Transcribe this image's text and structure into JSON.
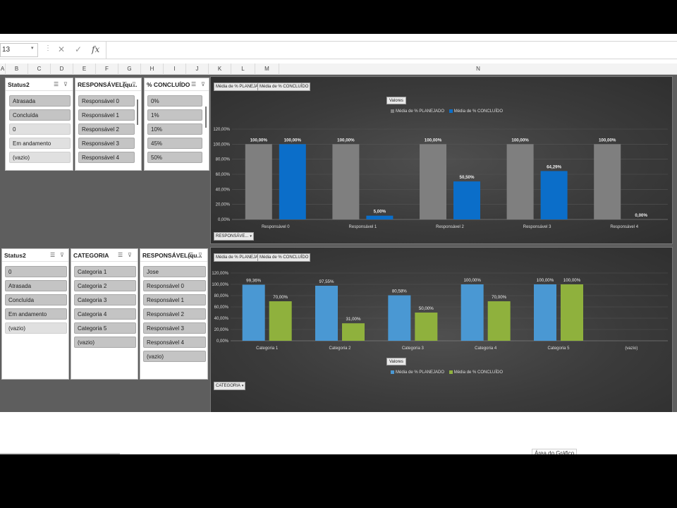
{
  "formula_bar": {
    "name_box": "13",
    "caret": "▾",
    "separator": "⋮",
    "cancel": "✕",
    "enter": "✓",
    "fx": "fx"
  },
  "columns": [
    "A",
    "B",
    "C",
    "D",
    "E",
    "F",
    "G",
    "H",
    "I",
    "J",
    "K",
    "L",
    "M",
    "N"
  ],
  "slicers_top": [
    {
      "title": "Status2",
      "items": [
        "Atrasada",
        "Concluída",
        "0",
        "Em andamento",
        "(vazio)"
      ]
    },
    {
      "title": "RESPONSÁVEL(qu...",
      "items": [
        "Responsável 0",
        "Responsável 1",
        "Responsável 2",
        "Responsável 3",
        "Responsável 4"
      ]
    },
    {
      "title": "% CONCLUÍDO",
      "items": [
        "0%",
        "1%",
        "10%",
        "45%",
        "50%"
      ]
    }
  ],
  "slicers_bottom": [
    {
      "title": "Status2",
      "items": [
        "0",
        "Atrasada",
        "Concluída",
        "Em andamento",
        "(vazio)"
      ]
    },
    {
      "title": "CATEGORIA",
      "items": [
        "Categoria 1",
        "Categoria 2",
        "Categoria 3",
        "Categoria 4",
        "Categoria 5",
        "(vazio)"
      ]
    },
    {
      "title": "RESPONSÁVEL(qu...",
      "items": [
        "Jose",
        "Responsável 0",
        "Responsável 1",
        "Responsável 2",
        "Responsável 3",
        "Responsável 4",
        "(vazio)"
      ]
    }
  ],
  "charts_ui": [
    {
      "field_buttons": [
        "Média de % PLANEJADO",
        "Média de % CONCLUÍDO"
      ],
      "values_button": "Valores",
      "axis_button": "RESPONSÁVE...",
      "axis_caret": "▾"
    },
    {
      "field_buttons": [
        "Média de % PLANEJADO",
        "Média de % CONCLUÍDO"
      ],
      "values_button": "Valores",
      "axis_button": "CATEGORIA",
      "axis_caret": "▾"
    }
  ],
  "status_label": "Área do Gráfico",
  "colors": {
    "gray": "#7f7f7f",
    "blue": "#0b6ec9",
    "lightblue": "#4a98d3",
    "green": "#8fb13d"
  },
  "chart_data": [
    {
      "type": "bar",
      "categories": [
        "Responsável 0",
        "Responsável 1",
        "Responsável 2",
        "Responsável 3",
        "Responsável 4"
      ],
      "series": [
        {
          "name": "Média de % PLANEJADO",
          "values": [
            100,
            100,
            100,
            100,
            100
          ],
          "labels": [
            "100,00%",
            "100,00%",
            "100,00%",
            "100,00%",
            "100,00%"
          ]
        },
        {
          "name": "Média de % CONCLUÍDO",
          "values": [
            100,
            5,
            50.5,
            64.29,
            0
          ],
          "labels": [
            "100,00%",
            "5,00%",
            "50,50%",
            "64,29%",
            "0,00%"
          ]
        }
      ],
      "yticks": [
        "0,00%",
        "20,00%",
        "40,00%",
        "60,00%",
        "80,00%",
        "100,00%",
        "120,00%"
      ],
      "ylim": [
        0,
        120
      ],
      "legend": "top"
    },
    {
      "type": "bar",
      "categories": [
        "Categoria 1",
        "Categoria 2",
        "Categoria 3",
        "Categoria 4",
        "Categoria 5",
        "(vazio)"
      ],
      "series": [
        {
          "name": "Média de % PLANEJADO",
          "values": [
            99.36,
            97.55,
            80.58,
            100,
            100,
            null
          ],
          "labels": [
            "99,36%",
            "97,55%",
            "80,58%",
            "100,00%",
            "100,00%",
            ""
          ]
        },
        {
          "name": "Média de % CONCLUÍDO",
          "values": [
            70,
            31,
            50,
            70,
            100,
            null
          ],
          "labels": [
            "70,00%",
            "31,00%",
            "50,00%",
            "70,00%",
            "100,00%",
            ""
          ]
        }
      ],
      "yticks": [
        "0,00%",
        "20,00%",
        "40,00%",
        "60,00%",
        "80,00%",
        "100,00%",
        "120,00%"
      ],
      "ylim": [
        0,
        120
      ],
      "legend": "bottom"
    }
  ]
}
